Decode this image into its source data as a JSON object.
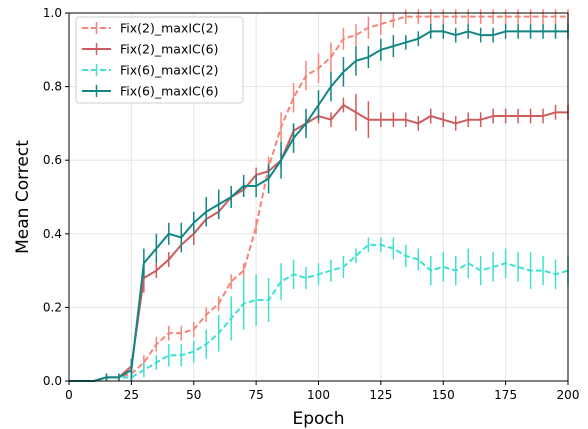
{
  "chart_data": {
    "type": "line",
    "xlabel": "Epoch",
    "ylabel": "Mean Correct",
    "xlim": [
      0,
      200
    ],
    "ylim": [
      0,
      1.0
    ],
    "xticks": [
      0,
      25,
      50,
      75,
      100,
      125,
      150,
      175,
      200
    ],
    "yticks": [
      0.0,
      0.2,
      0.4,
      0.6,
      0.8,
      1.0
    ],
    "xtick_labels": [
      "0",
      "25",
      "50",
      "75",
      "100",
      "125",
      "150",
      "175",
      "200"
    ],
    "ytick_labels": [
      "0.0",
      "0.2",
      "0.4",
      "0.6",
      "0.8",
      "1.0"
    ],
    "grid": true,
    "legend_position": "top-left",
    "series": [
      {
        "name": "Fix(2)_maxIC(2)",
        "color": "#f4877a",
        "dashed": true,
        "x": [
          0,
          5,
          10,
          15,
          20,
          25,
          30,
          35,
          40,
          45,
          50,
          55,
          60,
          65,
          70,
          75,
          80,
          85,
          90,
          95,
          100,
          105,
          110,
          115,
          120,
          125,
          130,
          135,
          140,
          145,
          150,
          155,
          160,
          165,
          170,
          175,
          180,
          185,
          190,
          195,
          200
        ],
        "y": [
          0.0,
          0.0,
          0.0,
          0.01,
          0.01,
          0.02,
          0.05,
          0.1,
          0.13,
          0.13,
          0.14,
          0.18,
          0.21,
          0.27,
          0.3,
          0.42,
          0.58,
          0.69,
          0.77,
          0.83,
          0.85,
          0.88,
          0.93,
          0.94,
          0.96,
          0.97,
          0.98,
          0.99,
          0.99,
          0.99,
          0.99,
          0.99,
          0.99,
          0.99,
          0.99,
          0.99,
          0.99,
          0.99,
          0.99,
          0.99,
          0.99
        ],
        "err": [
          0,
          0,
          0,
          0.01,
          0.01,
          0.02,
          0.02,
          0.02,
          0.02,
          0.02,
          0.02,
          0.02,
          0.02,
          0.02,
          0.02,
          0.02,
          0.03,
          0.04,
          0.04,
          0.04,
          0.04,
          0.04,
          0.03,
          0.03,
          0.03,
          0.03,
          0.02,
          0.02,
          0.02,
          0.02,
          0.02,
          0.02,
          0.02,
          0.02,
          0.02,
          0.02,
          0.02,
          0.02,
          0.02,
          0.02,
          0.02
        ]
      },
      {
        "name": "Fix(2)_maxIC(6)",
        "color": "#cd5c5c",
        "dashed": false,
        "x": [
          0,
          5,
          10,
          15,
          20,
          25,
          30,
          35,
          40,
          45,
          50,
          55,
          60,
          65,
          70,
          75,
          80,
          85,
          90,
          95,
          100,
          105,
          110,
          115,
          120,
          125,
          130,
          135,
          140,
          145,
          150,
          155,
          160,
          165,
          170,
          175,
          180,
          185,
          190,
          195,
          200
        ],
        "y": [
          0.0,
          0.0,
          0.0,
          0.01,
          0.01,
          0.04,
          0.28,
          0.3,
          0.33,
          0.37,
          0.4,
          0.44,
          0.46,
          0.5,
          0.52,
          0.56,
          0.57,
          0.6,
          0.68,
          0.7,
          0.72,
          0.71,
          0.75,
          0.73,
          0.71,
          0.71,
          0.71,
          0.71,
          0.7,
          0.72,
          0.71,
          0.7,
          0.71,
          0.71,
          0.72,
          0.72,
          0.72,
          0.72,
          0.72,
          0.73,
          0.73
        ],
        "err": [
          0,
          0,
          0,
          0.01,
          0.01,
          0.02,
          0.04,
          0.02,
          0.02,
          0.02,
          0.03,
          0.02,
          0.02,
          0.02,
          0.02,
          0.02,
          0.02,
          0.02,
          0.02,
          0.02,
          0.02,
          0.02,
          0.02,
          0.05,
          0.05,
          0.02,
          0.02,
          0.02,
          0.02,
          0.02,
          0.02,
          0.02,
          0.02,
          0.02,
          0.02,
          0.02,
          0.02,
          0.02,
          0.02,
          0.02,
          0.02
        ]
      },
      {
        "name": "Fix(6)_maxIC(2)",
        "color": "#40e0d0",
        "dashed": true,
        "x": [
          0,
          5,
          10,
          15,
          20,
          25,
          30,
          35,
          40,
          45,
          50,
          55,
          60,
          65,
          70,
          75,
          80,
          85,
          90,
          95,
          100,
          105,
          110,
          115,
          120,
          125,
          130,
          135,
          140,
          145,
          150,
          155,
          160,
          165,
          170,
          175,
          180,
          185,
          190,
          195,
          200
        ],
        "y": [
          0.0,
          0.0,
          0.0,
          0.01,
          0.01,
          0.01,
          0.03,
          0.05,
          0.07,
          0.07,
          0.08,
          0.1,
          0.13,
          0.17,
          0.21,
          0.22,
          0.22,
          0.27,
          0.29,
          0.28,
          0.29,
          0.3,
          0.31,
          0.34,
          0.37,
          0.37,
          0.36,
          0.34,
          0.33,
          0.3,
          0.31,
          0.3,
          0.32,
          0.3,
          0.31,
          0.32,
          0.31,
          0.3,
          0.3,
          0.29,
          0.3
        ],
        "err": [
          0,
          0,
          0,
          0.01,
          0.01,
          0.01,
          0.02,
          0.02,
          0.03,
          0.03,
          0.03,
          0.04,
          0.05,
          0.06,
          0.07,
          0.07,
          0.06,
          0.05,
          0.04,
          0.03,
          0.03,
          0.03,
          0.03,
          0.02,
          0.02,
          0.02,
          0.03,
          0.03,
          0.03,
          0.04,
          0.04,
          0.04,
          0.04,
          0.04,
          0.04,
          0.04,
          0.04,
          0.05,
          0.04,
          0.04,
          0.04
        ]
      },
      {
        "name": "Fix(6)_maxIC(6)",
        "color": "#138585",
        "dashed": false,
        "x": [
          0,
          5,
          10,
          15,
          20,
          25,
          30,
          35,
          40,
          45,
          50,
          55,
          60,
          65,
          70,
          75,
          80,
          85,
          90,
          95,
          100,
          105,
          110,
          115,
          120,
          125,
          130,
          135,
          140,
          145,
          150,
          155,
          160,
          165,
          170,
          175,
          180,
          185,
          190,
          195,
          200
        ],
        "y": [
          0.0,
          0.0,
          0.0,
          0.01,
          0.01,
          0.03,
          0.32,
          0.36,
          0.4,
          0.39,
          0.43,
          0.46,
          0.48,
          0.5,
          0.53,
          0.53,
          0.55,
          0.6,
          0.66,
          0.7,
          0.75,
          0.8,
          0.84,
          0.87,
          0.88,
          0.9,
          0.91,
          0.92,
          0.93,
          0.95,
          0.95,
          0.94,
          0.95,
          0.94,
          0.94,
          0.95,
          0.95,
          0.95,
          0.95,
          0.95,
          0.95
        ],
        "err": [
          0,
          0,
          0,
          0.01,
          0.01,
          0.03,
          0.04,
          0.04,
          0.03,
          0.04,
          0.03,
          0.04,
          0.04,
          0.03,
          0.03,
          0.03,
          0.04,
          0.05,
          0.04,
          0.04,
          0.04,
          0.04,
          0.04,
          0.04,
          0.03,
          0.03,
          0.03,
          0.02,
          0.02,
          0.02,
          0.02,
          0.02,
          0.02,
          0.02,
          0.02,
          0.02,
          0.02,
          0.02,
          0.02,
          0.02,
          0.02
        ]
      }
    ]
  }
}
